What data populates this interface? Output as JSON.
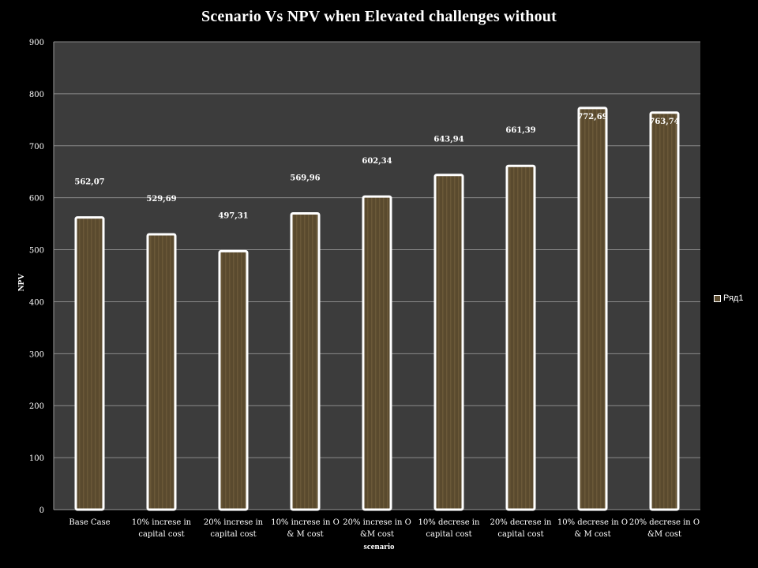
{
  "chart_data": {
    "type": "bar",
    "title": "Scenario Vs NPV when Elevated challenges without",
    "xlabel": "scenario",
    "ylabel": "NPV",
    "ylim": [
      0,
      900
    ],
    "yticks": [
      "0",
      "100",
      "200",
      "300",
      "400",
      "500",
      "600",
      "700",
      "800",
      "900"
    ],
    "grid": true,
    "legend_position": "right",
    "categories": [
      "Base Case",
      "10% increse in capital cost",
      "20% increse in capital cost",
      "10% increse in O & M cost",
      "20% increse in O &M cost",
      "10% decrese in capital cost",
      "20% decrese in capital cost",
      "10% decrese in O & M cost",
      "20% decrese in O &M cost"
    ],
    "category_lines": [
      [
        "Base Case"
      ],
      [
        "10% increse in",
        "capital cost"
      ],
      [
        "20% increse in",
        "capital cost"
      ],
      [
        "10% increse in O",
        "& M cost"
      ],
      [
        "20% increse in O",
        "&M cost"
      ],
      [
        "10% decrese in",
        "capital cost"
      ],
      [
        "20% decrese in",
        "capital cost"
      ],
      [
        "10% decrese in O",
        "& M cost"
      ],
      [
        "20% decrese in O",
        "&M cost"
      ]
    ],
    "series": [
      {
        "name": "Ряд1",
        "values": [
          562.07,
          529.69,
          497.31,
          569.96,
          602.34,
          643.94,
          661.39,
          772.69,
          763.74
        ],
        "labels": [
          "562,07",
          "529,69",
          "497,31",
          "569,96",
          "602,34",
          "643,94",
          "661,39",
          "772,69",
          "763,74"
        ]
      }
    ],
    "colors": {
      "plot_background": "#3c3c3c",
      "bar_fill": "#5a4a2e",
      "bar_stripe": "#6a5838",
      "bar_border": "#ffffff",
      "gridline": "#8a8a8a"
    }
  }
}
